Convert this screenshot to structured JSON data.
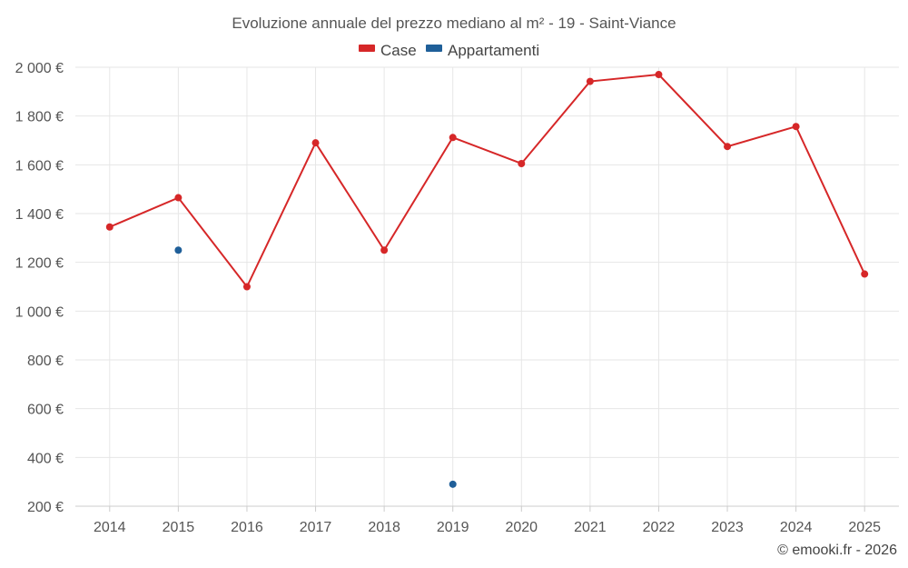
{
  "chart_data": {
    "type": "line",
    "title": "Evoluzione annuale del prezzo mediano al m² - 19 - Saint-Viance",
    "categories": [
      "2014",
      "2015",
      "2016",
      "2017",
      "2018",
      "2019",
      "2020",
      "2021",
      "2022",
      "2023",
      "2024",
      "2025"
    ],
    "series": [
      {
        "name": "Case",
        "color": "#d62728",
        "values": [
          1345,
          1465,
          1100,
          1690,
          1250,
          1712,
          1605,
          1942,
          1970,
          1675,
          1757,
          1152
        ]
      },
      {
        "name": "Appartamenti",
        "color": "#1f5f99",
        "values": [
          null,
          1250,
          null,
          null,
          null,
          290,
          null,
          null,
          null,
          null,
          null,
          null
        ]
      }
    ],
    "ylim": [
      200,
      2000
    ],
    "yticks": [
      200,
      400,
      600,
      800,
      1000,
      1200,
      1400,
      1600,
      1800,
      2000
    ],
    "ytick_labels": [
      "200 €",
      "400 €",
      "600 €",
      "800 €",
      "1 000 €",
      "1 200 €",
      "1 400 €",
      "1 600 €",
      "1 800 €",
      "2 000 €"
    ],
    "xlabel": "",
    "ylabel": "",
    "grid": true,
    "legend": "top-center"
  },
  "credit": "© emooki.fr - 2026"
}
